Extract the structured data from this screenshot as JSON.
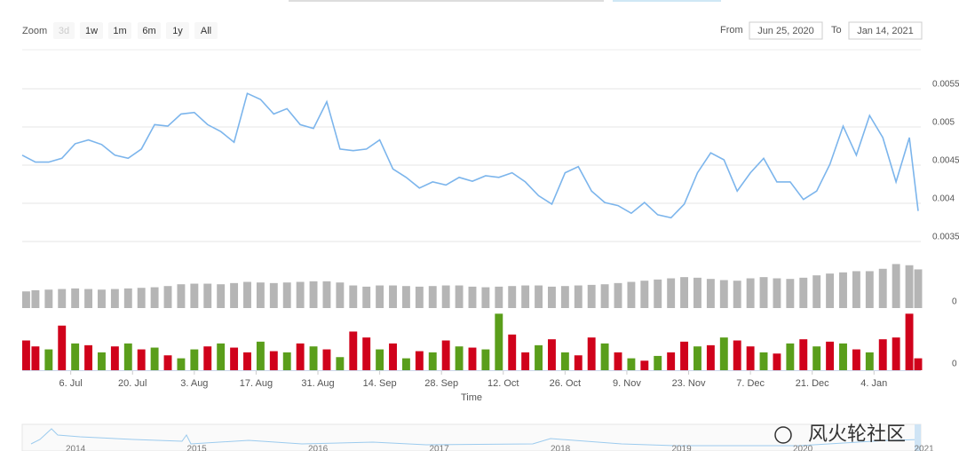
{
  "ui": {
    "zoom_label": "Zoom",
    "zoom_buttons": [
      "3d",
      "1w",
      "1m",
      "6m",
      "1y",
      "All"
    ],
    "from_label": "From",
    "from_value": "Jun 25, 2020",
    "to_label": "To",
    "to_value": "Jan 14, 2021",
    "navigator_years": [
      "2014",
      "2015",
      "2016",
      "2017",
      "2018",
      "2019",
      "2020",
      "2021"
    ],
    "watermark": "风火轮社区"
  },
  "chart_data": {
    "type": "stock",
    "x_label": "Time",
    "x": [
      "2020-06-25",
      "2020-06-28",
      "2020-07-01",
      "2020-07-04",
      "2020-07-07",
      "2020-07-10",
      "2020-07-13",
      "2020-07-16",
      "2020-07-19",
      "2020-07-22",
      "2020-07-25",
      "2020-07-28",
      "2020-07-31",
      "2020-08-03",
      "2020-08-06",
      "2020-08-09",
      "2020-08-12",
      "2020-08-15",
      "2020-08-18",
      "2020-08-21",
      "2020-08-24",
      "2020-08-27",
      "2020-08-30",
      "2020-09-02",
      "2020-09-05",
      "2020-09-08",
      "2020-09-11",
      "2020-09-14",
      "2020-09-17",
      "2020-09-20",
      "2020-09-23",
      "2020-09-26",
      "2020-09-29",
      "2020-10-02",
      "2020-10-05",
      "2020-10-08",
      "2020-10-11",
      "2020-10-14",
      "2020-10-17",
      "2020-10-20",
      "2020-10-23",
      "2020-10-26",
      "2020-10-29",
      "2020-11-01",
      "2020-11-04",
      "2020-11-07",
      "2020-11-10",
      "2020-11-13",
      "2020-11-16",
      "2020-11-19",
      "2020-11-22",
      "2020-11-25",
      "2020-11-28",
      "2020-12-01",
      "2020-12-04",
      "2020-12-07",
      "2020-12-10",
      "2020-12-13",
      "2020-12-16",
      "2020-12-19",
      "2020-12-22",
      "2020-12-25",
      "2020-12-28",
      "2020-12-31",
      "2021-01-03",
      "2021-01-06",
      "2021-01-09",
      "2021-01-12",
      "2021-01-14"
    ],
    "xlim": [
      "2020-06-25",
      "2021-01-14"
    ],
    "xticks": [
      {
        "value": "2020-07-06",
        "label": "6. Jul"
      },
      {
        "value": "2020-07-20",
        "label": "20. Jul"
      },
      {
        "value": "2020-08-03",
        "label": "3. Aug"
      },
      {
        "value": "2020-08-17",
        "label": "17. Aug"
      },
      {
        "value": "2020-08-31",
        "label": "31. Aug"
      },
      {
        "value": "2020-09-14",
        "label": "14. Sep"
      },
      {
        "value": "2020-09-28",
        "label": "28. Sep"
      },
      {
        "value": "2020-10-12",
        "label": "12. Oct"
      },
      {
        "value": "2020-10-26",
        "label": "26. Oct"
      },
      {
        "value": "2020-11-09",
        "label": "9. Nov"
      },
      {
        "value": "2020-11-23",
        "label": "23. Nov"
      },
      {
        "value": "2020-12-07",
        "label": "7. Dec"
      },
      {
        "value": "2020-12-21",
        "label": "21. Dec"
      },
      {
        "value": "2021-01-04",
        "label": "4. Jan"
      }
    ],
    "panes": [
      {
        "type": "line",
        "ylim": [
          0.0035,
          0.0055
        ],
        "yticks": [
          0.0035,
          0.004,
          0.0045,
          0.005,
          0.0055
        ],
        "grid": true,
        "series": [
          {
            "color": "#7cb5ec",
            "values": [
              0.00463,
              0.00454,
              0.00454,
              0.00459,
              0.00478,
              0.00483,
              0.00477,
              0.00463,
              0.00459,
              0.00471,
              0.00503,
              0.00501,
              0.00517,
              0.00519,
              0.00503,
              0.00494,
              0.0048,
              0.00544,
              0.00536,
              0.00517,
              0.00524,
              0.00503,
              0.00498,
              0.00533,
              0.00471,
              0.00469,
              0.00471,
              0.00483,
              0.00445,
              0.00434,
              0.0042,
              0.00428,
              0.00424,
              0.00434,
              0.00429,
              0.00436,
              0.00434,
              0.0044,
              0.00428,
              0.0041,
              0.00399,
              0.0044,
              0.00448,
              0.00416,
              0.00401,
              0.00397,
              0.00387,
              0.00401,
              0.00385,
              0.00381,
              0.00399,
              0.0044,
              0.00466,
              0.00457,
              0.00416,
              0.0044,
              0.00459,
              0.00428,
              0.00428,
              0.00405,
              0.00416,
              0.00451,
              0.00501,
              0.00463,
              0.00515,
              0.00486,
              0.00428,
              0.00486,
              0.0039
            ]
          }
        ]
      },
      {
        "type": "bar",
        "ylim": [
          0,
          100
        ],
        "yticks": [
          0
        ],
        "series": [
          {
            "color": "#b5b5b5",
            "values": [
              28,
              30,
              31,
              32,
              33,
              32,
              31,
              32,
              33,
              34,
              35,
              37,
              40,
              41,
              41,
              40,
              42,
              44,
              43,
              42,
              43,
              44,
              45,
              45,
              43,
              38,
              36,
              38,
              38,
              37,
              36,
              37,
              38,
              38,
              36,
              35,
              36,
              37,
              38,
              38,
              36,
              37,
              38,
              39,
              40,
              42,
              44,
              46,
              48,
              50,
              52,
              51,
              49,
              47,
              46,
              50,
              52,
              50,
              49,
              51,
              55,
              58,
              60,
              62,
              62,
              66,
              74,
              72,
              65
            ]
          }
        ]
      },
      {
        "type": "bar",
        "ylim": [
          0,
          100
        ],
        "yticks": [
          0
        ],
        "series": [
          {
            "colors": [
              "#d0021b",
              "#d0021b",
              "#5a9e1b",
              "#d0021b",
              "#5a9e1b",
              "#d0021b",
              "#5a9e1b",
              "#d0021b",
              "#5a9e1b",
              "#d0021b",
              "#5a9e1b",
              "#d0021b",
              "#5a9e1b",
              "#5a9e1b",
              "#d0021b",
              "#5a9e1b",
              "#d0021b",
              "#d0021b",
              "#5a9e1b",
              "#d0021b",
              "#5a9e1b",
              "#d0021b",
              "#5a9e1b",
              "#d0021b",
              "#5a9e1b",
              "#d0021b",
              "#d0021b",
              "#5a9e1b",
              "#d0021b",
              "#5a9e1b",
              "#d0021b",
              "#5a9e1b",
              "#d0021b",
              "#5a9e1b",
              "#d0021b",
              "#5a9e1b",
              "#5a9e1b",
              "#d0021b",
              "#d0021b",
              "#5a9e1b",
              "#d0021b",
              "#5a9e1b",
              "#d0021b",
              "#d0021b",
              "#5a9e1b",
              "#d0021b",
              "#5a9e1b",
              "#d0021b",
              "#5a9e1b",
              "#d0021b",
              "#d0021b",
              "#5a9e1b",
              "#d0021b",
              "#5a9e1b",
              "#d0021b",
              "#d0021b",
              "#5a9e1b",
              "#d0021b",
              "#5a9e1b",
              "#d0021b",
              "#5a9e1b",
              "#d0021b",
              "#5a9e1b",
              "#d0021b",
              "#5a9e1b",
              "#d0021b",
              "#d0021b",
              "#d0021b",
              "#d0021b"
            ],
            "values": [
              50,
              40,
              35,
              75,
              45,
              42,
              30,
              40,
              45,
              35,
              38,
              25,
              20,
              35,
              40,
              45,
              38,
              30,
              48,
              32,
              30,
              45,
              40,
              35,
              22,
              65,
              55,
              35,
              45,
              20,
              32,
              30,
              50,
              40,
              38,
              35,
              95,
              60,
              30,
              42,
              52,
              30,
              25,
              55,
              45,
              30,
              20,
              16,
              24,
              30,
              48,
              40,
              42,
              55,
              50,
              40,
              30,
              28,
              45,
              52,
              40,
              48,
              45,
              35,
              30,
              52,
              55,
              95,
              20
            ]
          }
        ]
      }
    ]
  }
}
